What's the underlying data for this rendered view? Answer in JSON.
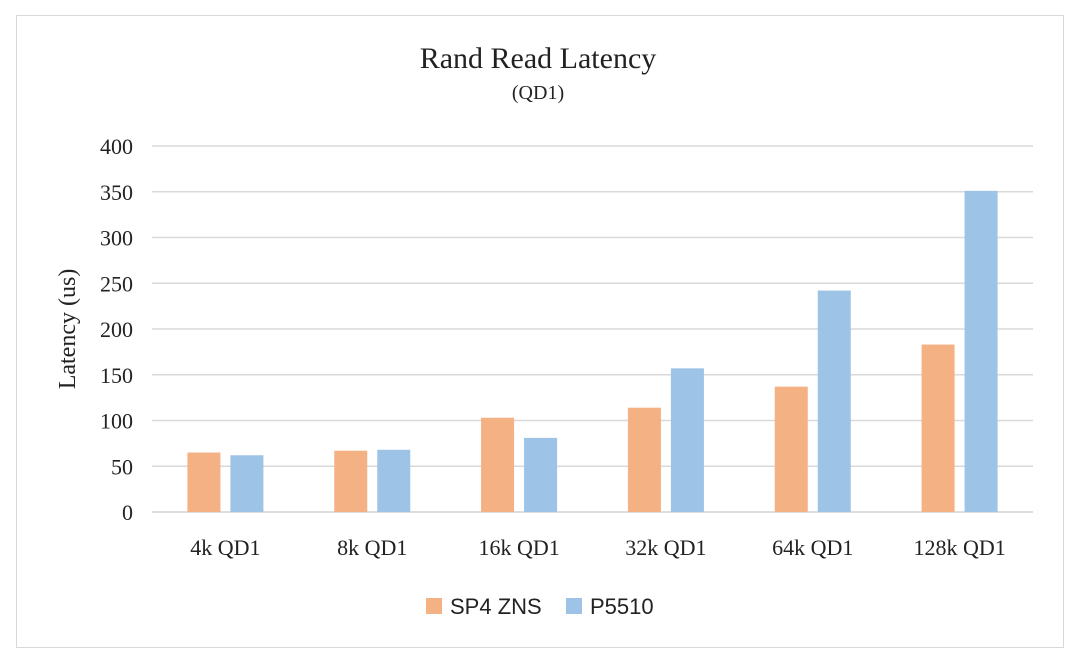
{
  "chart_data": {
    "type": "bar",
    "title": "Rand Read Latency",
    "subtitle": "(QD1)",
    "xlabel": "",
    "ylabel": "Latency (us)",
    "ylim": [
      0,
      400
    ],
    "yticks": [
      0,
      50,
      100,
      150,
      200,
      250,
      300,
      350,
      400
    ],
    "grid": true,
    "legend_position": "bottom",
    "categories": [
      "4k QD1",
      "8k QD1",
      "16k QD1",
      "32k QD1",
      "64k QD1",
      "128k QD1"
    ],
    "series": [
      {
        "name": "SP4 ZNS",
        "color": "#f4b183",
        "values": [
          65,
          67,
          103,
          114,
          137,
          183
        ]
      },
      {
        "name": "P5510",
        "color": "#9dc3e6",
        "values": [
          62,
          68,
          81,
          157,
          242,
          351
        ]
      }
    ]
  }
}
